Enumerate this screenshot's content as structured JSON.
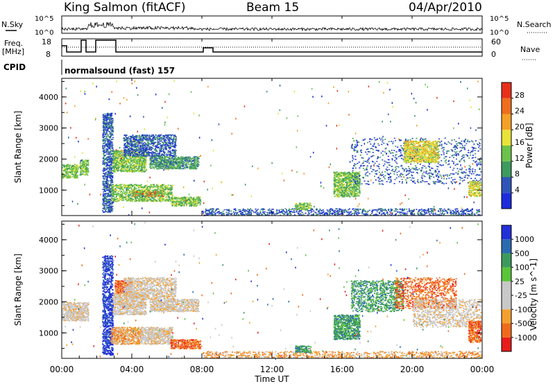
{
  "header": {
    "station": "King Salmon (fitACF)",
    "beam": "Beam 15",
    "date": "04/Apr/2010"
  },
  "top_panels": {
    "nsky_label": "N.Sky",
    "nsearch_label": "N.Search",
    "count_ticks": [
      "10^5",
      "10^0"
    ],
    "freq_label": "Freq.",
    "freq_unit": "[MHz]",
    "freq_ticks": [
      "18",
      "8"
    ],
    "nave_label": "Nave",
    "nave_ticks": [
      "60",
      "0"
    ],
    "cpid_label": "CPID",
    "cpid_text": "normalsound (fast) 157"
  },
  "colors": {
    "power": [
      "#1d2bdc",
      "#2f55b8",
      "#3e9a5e",
      "#6cc24a",
      "#e8e23a",
      "#f4a028",
      "#ee6e1e",
      "#e8301c"
    ],
    "velocity": [
      "#e81c1c",
      "#f06a1c",
      "#f4a030",
      "#c8c8c8",
      "#c8c8c8",
      "#5ac43a",
      "#3c9a5c",
      "#2a6ab0",
      "#2230d8"
    ]
  },
  "chart_data": [
    {
      "type": "heatmap",
      "title": "Power",
      "ylabel": "Slant Range [km]",
      "xlabel": "",
      "colorbar_label": "Power [dB]",
      "colorbar_ticks": [
        "28",
        "24",
        "20",
        "16",
        "12",
        "8",
        "4"
      ],
      "ylim": [
        180,
        4600
      ],
      "yticks": [
        "4000",
        "3000",
        "2000",
        "1000"
      ],
      "xlim": [
        0,
        24
      ],
      "xtick_labels": [
        "00:00",
        "04:00",
        "08:00",
        "12:00",
        "16:00",
        "20:00",
        "00:00"
      ],
      "scatter_regions": [
        {
          "t0": 0.0,
          "t1": 0.9,
          "r0": 1400,
          "r1": 1850,
          "level": 3
        },
        {
          "t0": 1.0,
          "t1": 1.5,
          "r0": 1500,
          "r1": 2000,
          "level": 3
        },
        {
          "t0": 2.3,
          "t1": 2.9,
          "r0": 300,
          "r1": 3500,
          "level": 1
        },
        {
          "t0": 2.9,
          "t1": 4.8,
          "r0": 1600,
          "r1": 2300,
          "level": 3
        },
        {
          "t0": 3.5,
          "t1": 6.5,
          "r0": 2100,
          "r1": 2800,
          "level": 1
        },
        {
          "t0": 5.0,
          "t1": 7.8,
          "r0": 1700,
          "r1": 2100,
          "level": 2
        },
        {
          "t0": 4.0,
          "t1": 5.8,
          "r0": 800,
          "r1": 1000,
          "level": 7
        },
        {
          "t0": 2.8,
          "t1": 6.3,
          "r0": 650,
          "r1": 1200,
          "level": 3
        },
        {
          "t0": 6.2,
          "t1": 7.9,
          "r0": 500,
          "r1": 800,
          "level": 3
        },
        {
          "t0": 8.0,
          "t1": 23.9,
          "r0": 200,
          "r1": 420,
          "level": 1
        },
        {
          "t0": 13.3,
          "t1": 14.2,
          "r0": 380,
          "r1": 600,
          "level": 3
        },
        {
          "t0": 15.5,
          "t1": 17.0,
          "r0": 800,
          "r1": 1600,
          "level": 3
        },
        {
          "t0": 16.5,
          "t1": 23.9,
          "r0": 1200,
          "r1": 2700,
          "level": 1
        },
        {
          "t0": 19.5,
          "t1": 21.5,
          "r0": 1900,
          "r1": 2600,
          "level": 4
        },
        {
          "t0": 23.2,
          "t1": 23.9,
          "r0": 800,
          "r1": 1300,
          "level": 4
        }
      ]
    },
    {
      "type": "heatmap",
      "title": "Velocity",
      "ylabel": "Slant Range [km]",
      "xlabel": "Time UT",
      "colorbar_label": "Velocity [m s^-1]",
      "colorbar_ticks": [
        "1000",
        "500",
        "100",
        "25",
        "-25",
        "-100",
        "-500",
        "-1000"
      ],
      "ylim": [
        180,
        4600
      ],
      "yticks": [
        "4000",
        "3000",
        "2000",
        "1000"
      ],
      "xlim": [
        0,
        24
      ],
      "xtick_labels": [
        "00:00",
        "04:00",
        "08:00",
        "12:00",
        "16:00",
        "20:00",
        "00:00"
      ],
      "scatter_regions": [
        {
          "t0": 0.0,
          "t1": 1.5,
          "r0": 1400,
          "r1": 2000,
          "level": 3
        },
        {
          "t0": 2.3,
          "t1": 2.9,
          "r0": 300,
          "r1": 3500,
          "level": 8
        },
        {
          "t0": 2.9,
          "t1": 4.8,
          "r0": 1600,
          "r1": 2300,
          "level": 3
        },
        {
          "t0": 3.0,
          "t1": 4.0,
          "r0": 2300,
          "r1": 2700,
          "level": 1
        },
        {
          "t0": 3.5,
          "t1": 6.5,
          "r0": 2100,
          "r1": 2800,
          "level": 3
        },
        {
          "t0": 5.0,
          "t1": 7.8,
          "r0": 1700,
          "r1": 2100,
          "level": 3
        },
        {
          "t0": 2.8,
          "t1": 4.5,
          "r0": 650,
          "r1": 1200,
          "level": 2
        },
        {
          "t0": 4.5,
          "t1": 6.3,
          "r0": 650,
          "r1": 1200,
          "level": 3
        },
        {
          "t0": 6.2,
          "t1": 7.9,
          "r0": 500,
          "r1": 800,
          "level": 1
        },
        {
          "t0": 8.0,
          "t1": 23.9,
          "r0": 200,
          "r1": 420,
          "level": 2
        },
        {
          "t0": 13.3,
          "t1": 14.2,
          "r0": 380,
          "r1": 600,
          "level": 6
        },
        {
          "t0": 15.5,
          "t1": 17.0,
          "r0": 800,
          "r1": 1600,
          "level": 6
        },
        {
          "t0": 16.5,
          "t1": 19.5,
          "r0": 1700,
          "r1": 2700,
          "level": 6
        },
        {
          "t0": 19.0,
          "t1": 22.5,
          "r0": 1800,
          "r1": 2800,
          "level": 1
        },
        {
          "t0": 20.0,
          "t1": 23.9,
          "r0": 1200,
          "r1": 2100,
          "level": 3
        },
        {
          "t0": 23.2,
          "t1": 23.9,
          "r0": 700,
          "r1": 1400,
          "level": 1
        }
      ]
    }
  ]
}
